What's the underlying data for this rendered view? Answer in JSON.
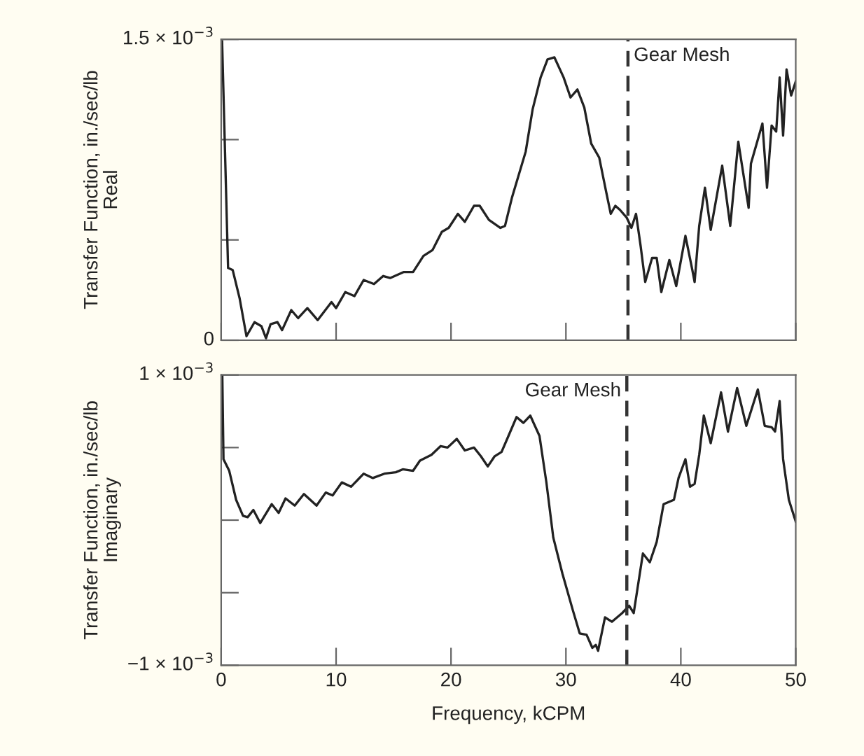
{
  "chart_data": [
    {
      "type": "line",
      "ylabel": "Transfer Function, in./sec/lb\nReal",
      "xlim": [
        0,
        50
      ],
      "ylim": [
        0,
        0.0015
      ],
      "xticks": [
        0,
        10,
        20,
        30,
        40,
        50
      ],
      "yticks": [
        0,
        {
          "value": 0.0005,
          "label": null
        },
        {
          "value": 0.001,
          "label": null
        },
        {
          "value": 0.0015,
          "label": "1.5 × 10$^{−3}$"
        }
      ],
      "tick_labels": "y",
      "grid": false,
      "ref_lines": [
        {
          "axis": "x",
          "value": 35.4,
          "label": "Gear Mesh",
          "color": "#333333",
          "line_style": "dashed"
        }
      ],
      "series": [
        {
          "color": "#222222",
          "x": [
            0.08,
            0.6,
            1.0,
            1.6,
            2.2,
            2.9,
            3.5,
            3.9,
            4.3,
            4.9,
            5.3,
            6.1,
            6.7,
            7.5,
            8.4,
            9.6,
            10.0,
            10.8,
            11.6,
            12.4,
            13.3,
            14.1,
            14.7,
            15.9,
            16.7,
            17.6,
            18.4,
            19.2,
            19.8,
            20.6,
            21.2,
            22.0,
            22.5,
            23.3,
            24.3,
            24.7,
            25.3,
            26.5,
            27.1,
            27.8,
            28.4,
            29.0,
            29.8,
            30.4,
            31.0,
            31.6,
            32.2,
            32.9,
            33.5,
            33.9,
            34.3,
            34.7,
            35.3,
            35.7,
            36.1,
            36.5,
            36.9,
            37.5,
            37.9,
            38.3,
            39.0,
            39.6,
            40.4,
            41.0,
            41.2,
            41.6,
            42.1,
            42.6,
            43.6,
            44.3,
            45.0,
            45.9,
            46.1,
            47.1,
            47.5,
            47.9,
            48.3,
            48.6,
            48.9,
            49.2,
            49.6,
            50.0
          ],
          "values": [
            0.00149,
            0.00036,
            0.00035,
            0.00021,
            2e-05,
            9e-05,
            7e-05,
            1e-05,
            8e-05,
            9e-05,
            5e-05,
            0.00015,
            0.00011,
            0.00016,
            0.0001,
            0.00019,
            0.00016,
            0.00024,
            0.00022,
            0.0003,
            0.00028,
            0.00032,
            0.00031,
            0.00034,
            0.00034,
            0.00042,
            0.00045,
            0.00054,
            0.00056,
            0.00063,
            0.00059,
            0.00067,
            0.00067,
            0.0006,
            0.00056,
            0.00057,
            0.00071,
            0.00094,
            0.00115,
            0.00131,
            0.0014,
            0.00141,
            0.00131,
            0.00121,
            0.00125,
            0.00116,
            0.00098,
            0.00091,
            0.00074,
            0.00063,
            0.00067,
            0.00065,
            0.00061,
            0.00056,
            0.00063,
            0.00047,
            0.00029,
            0.00041,
            0.00041,
            0.00024,
            0.0004,
            0.00027,
            0.00052,
            0.00035,
            0.00029,
            0.00057,
            0.00076,
            0.00055,
            0.00087,
            0.00057,
            0.00099,
            0.00066,
            0.00088,
            0.00108,
            0.00076,
            0.00107,
            0.00104,
            0.00131,
            0.00102,
            0.00135,
            0.00122,
            0.00129
          ]
        }
      ]
    },
    {
      "type": "line",
      "xlabel": "Frequency, kCPM",
      "ylabel": "Transfer Function, in./sec/lb\nImaginary",
      "xlim": [
        0,
        50
      ],
      "ylim": [
        -0.001,
        0.001
      ],
      "xticks": [
        0,
        10,
        20,
        30,
        40,
        50
      ],
      "yticks": [
        {
          "value": -0.001,
          "label": "−1 × 10$^{−3}$"
        },
        {
          "value": -0.0005,
          "label": null
        },
        {
          "value": 0,
          "label": null
        },
        {
          "value": 0.0005,
          "label": null
        },
        {
          "value": 0.001,
          "label": "1 × 10$^{−3}$"
        }
      ],
      "grid": false,
      "ref_lines": [
        {
          "axis": "x",
          "value": 35.3,
          "label": "Gear Mesh",
          "color": "#333333",
          "line_style": "dashed"
        }
      ],
      "series": [
        {
          "color": "#222222",
          "x": [
            0.1,
            0.2,
            0.7,
            1.3,
            1.9,
            2.3,
            2.8,
            3.4,
            4.4,
            5.0,
            5.6,
            6.4,
            7.2,
            8.3,
            9.1,
            9.7,
            10.5,
            11.3,
            12.4,
            13.2,
            14.2,
            15.2,
            15.8,
            16.7,
            17.3,
            18.3,
            19.1,
            19.7,
            20.5,
            21.2,
            22.0,
            22.6,
            23.2,
            23.8,
            24.4,
            25.0,
            25.7,
            26.3,
            26.9,
            27.7,
            28.3,
            28.9,
            29.7,
            30.6,
            31.2,
            31.8,
            32.3,
            32.6,
            32.8,
            33.4,
            34.0,
            34.9,
            35.5,
            35.9,
            36.7,
            37.3,
            37.9,
            38.5,
            39.4,
            39.8,
            40.4,
            40.8,
            41.2,
            41.6,
            42.0,
            42.6,
            43.5,
            44.1,
            44.9,
            45.7,
            46.7,
            47.3,
            47.9,
            48.2,
            48.6,
            48.9,
            49.4,
            50.0
          ],
          "values": [
            0.00099,
            0.00042,
            0.00034,
            0.00014,
            3e-05,
            2e-05,
            7e-05,
            -2e-05,
            0.00011,
            5e-05,
            0.00015,
            0.0001,
            0.00018,
            0.0001,
            0.00019,
            0.00017,
            0.00026,
            0.00023,
            0.00032,
            0.00029,
            0.00032,
            0.00033,
            0.00035,
            0.00034,
            0.00041,
            0.00045,
            0.00051,
            0.0005,
            0.00056,
            0.00048,
            0.0005,
            0.00044,
            0.00037,
            0.00044,
            0.00047,
            0.00058,
            0.00071,
            0.00067,
            0.00072,
            0.00058,
            0.00026,
            -0.00012,
            -0.00037,
            -0.00062,
            -0.00078,
            -0.00079,
            -0.00088,
            -0.00086,
            -0.0009,
            -0.00067,
            -0.0007,
            -0.00064,
            -0.00059,
            -0.00064,
            -0.00023,
            -0.00029,
            -0.00015,
            0.00011,
            0.00014,
            0.00029,
            0.00042,
            0.00023,
            0.00025,
            0.00045,
            0.00072,
            0.00053,
            0.00088,
            0.00061,
            0.00091,
            0.00065,
            0.0009,
            0.00065,
            0.00064,
            0.00061,
            0.00082,
            0.00042,
            0.00014,
            -1e-05
          ]
        }
      ]
    }
  ]
}
